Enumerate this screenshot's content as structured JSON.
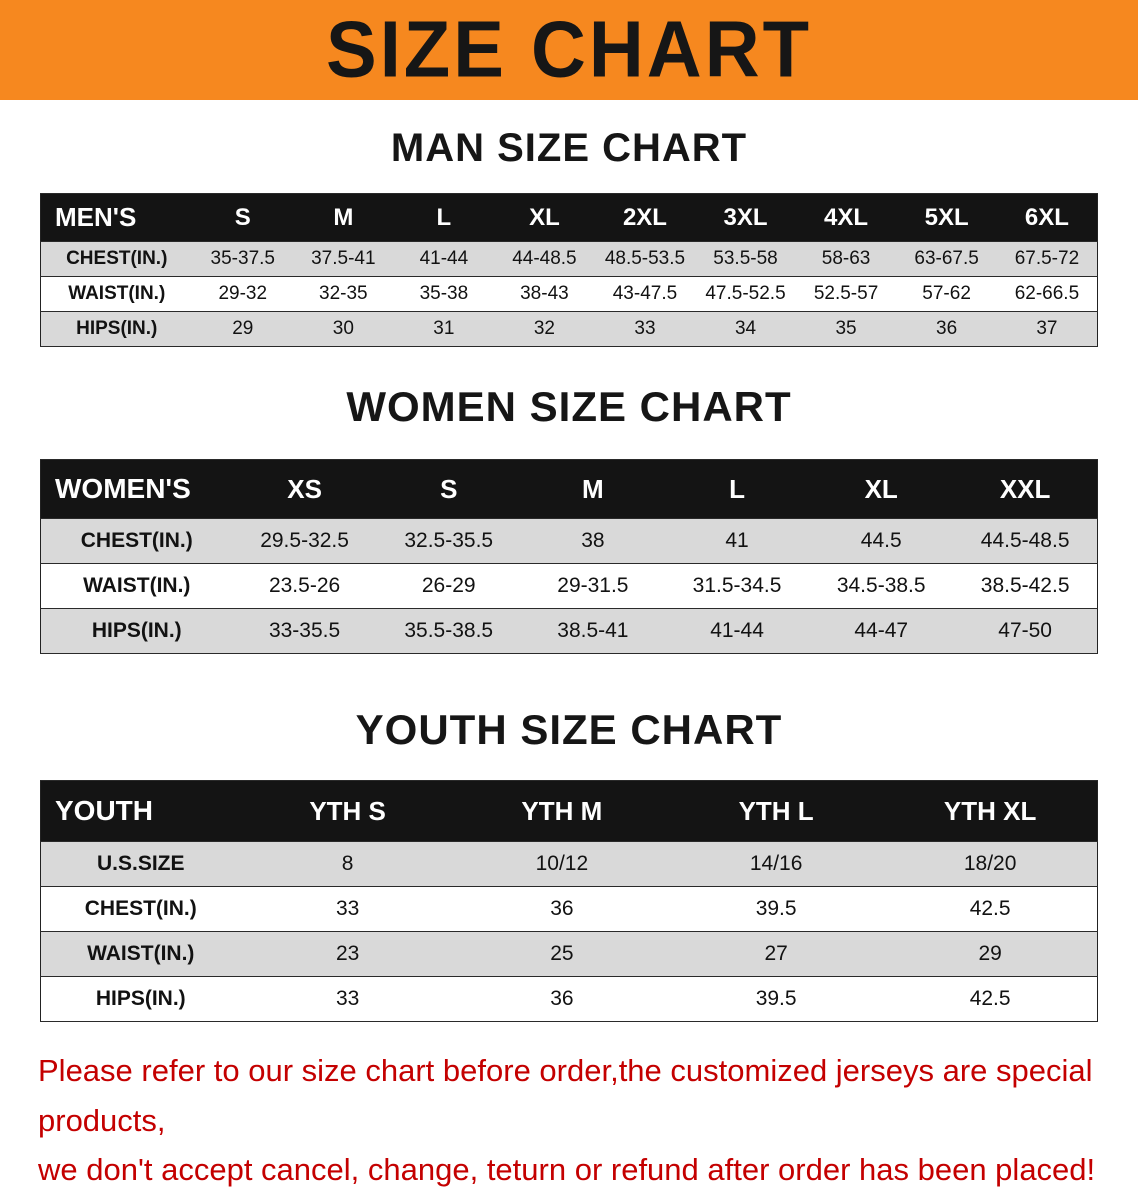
{
  "banner": {
    "title": "SIZE CHART"
  },
  "sections": [
    {
      "heading": "MAN SIZE CHART",
      "table": {
        "label": "MEN'S",
        "columns": [
          "S",
          "M",
          "L",
          "XL",
          "2XL",
          "3XL",
          "4XL",
          "5XL",
          "6XL"
        ],
        "rows": [
          {
            "label": "CHEST(IN.)",
            "values": [
              "35-37.5",
              "37.5-41",
              "41-44",
              "44-48.5",
              "48.5-53.5",
              "53.5-58",
              "58-63",
              "63-67.5",
              "67.5-72"
            ]
          },
          {
            "label": "WAIST(IN.)",
            "values": [
              "29-32",
              "32-35",
              "35-38",
              "38-43",
              "43-47.5",
              "47.5-52.5",
              "52.5-57",
              "57-62",
              "62-66.5"
            ]
          },
          {
            "label": "HIPS(IN.)",
            "values": [
              "29",
              "30",
              "31",
              "32",
              "33",
              "34",
              "35",
              "36",
              "37"
            ]
          }
        ]
      }
    },
    {
      "heading": "WOMEN SIZE CHART",
      "table": {
        "label": "WOMEN'S",
        "columns": [
          "XS",
          "S",
          "M",
          "L",
          "XL",
          "XXL"
        ],
        "rows": [
          {
            "label": "CHEST(IN.)",
            "values": [
              "29.5-32.5",
              "32.5-35.5",
              "38",
              "41",
              "44.5",
              "44.5-48.5"
            ]
          },
          {
            "label": "WAIST(IN.)",
            "values": [
              "23.5-26",
              "26-29",
              "29-31.5",
              "31.5-34.5",
              "34.5-38.5",
              "38.5-42.5"
            ]
          },
          {
            "label": "HIPS(IN.)",
            "values": [
              "33-35.5",
              "35.5-38.5",
              "38.5-41",
              "41-44",
              "44-47",
              "47-50"
            ]
          }
        ]
      }
    },
    {
      "heading": "YOUTH SIZE CHART",
      "table": {
        "label": "YOUTH",
        "columns": [
          "YTH S",
          "YTH M",
          "YTH L",
          "YTH XL"
        ],
        "rows": [
          {
            "label": "U.S.SIZE",
            "values": [
              "8",
              "10/12",
              "14/16",
              "18/20"
            ]
          },
          {
            "label": "CHEST(IN.)",
            "values": [
              "33",
              "36",
              "39.5",
              "42.5"
            ]
          },
          {
            "label": "WAIST(IN.)",
            "values": [
              "23",
              "25",
              "27",
              "29"
            ]
          },
          {
            "label": "HIPS(IN.)",
            "values": [
              "33",
              "36",
              "39.5",
              "42.5"
            ]
          }
        ]
      }
    }
  ],
  "footer": {
    "line1": "Please refer to our size chart before order,the customized jerseys are special products,",
    "line2": "we don't accept cancel, change, teturn or refund after order has been placed!"
  },
  "colors": {
    "banner_orange": "#f6881f",
    "table_header_black": "#141414",
    "row_stripe_gray": "#d9d9d9",
    "footer_red": "#c40000"
  }
}
